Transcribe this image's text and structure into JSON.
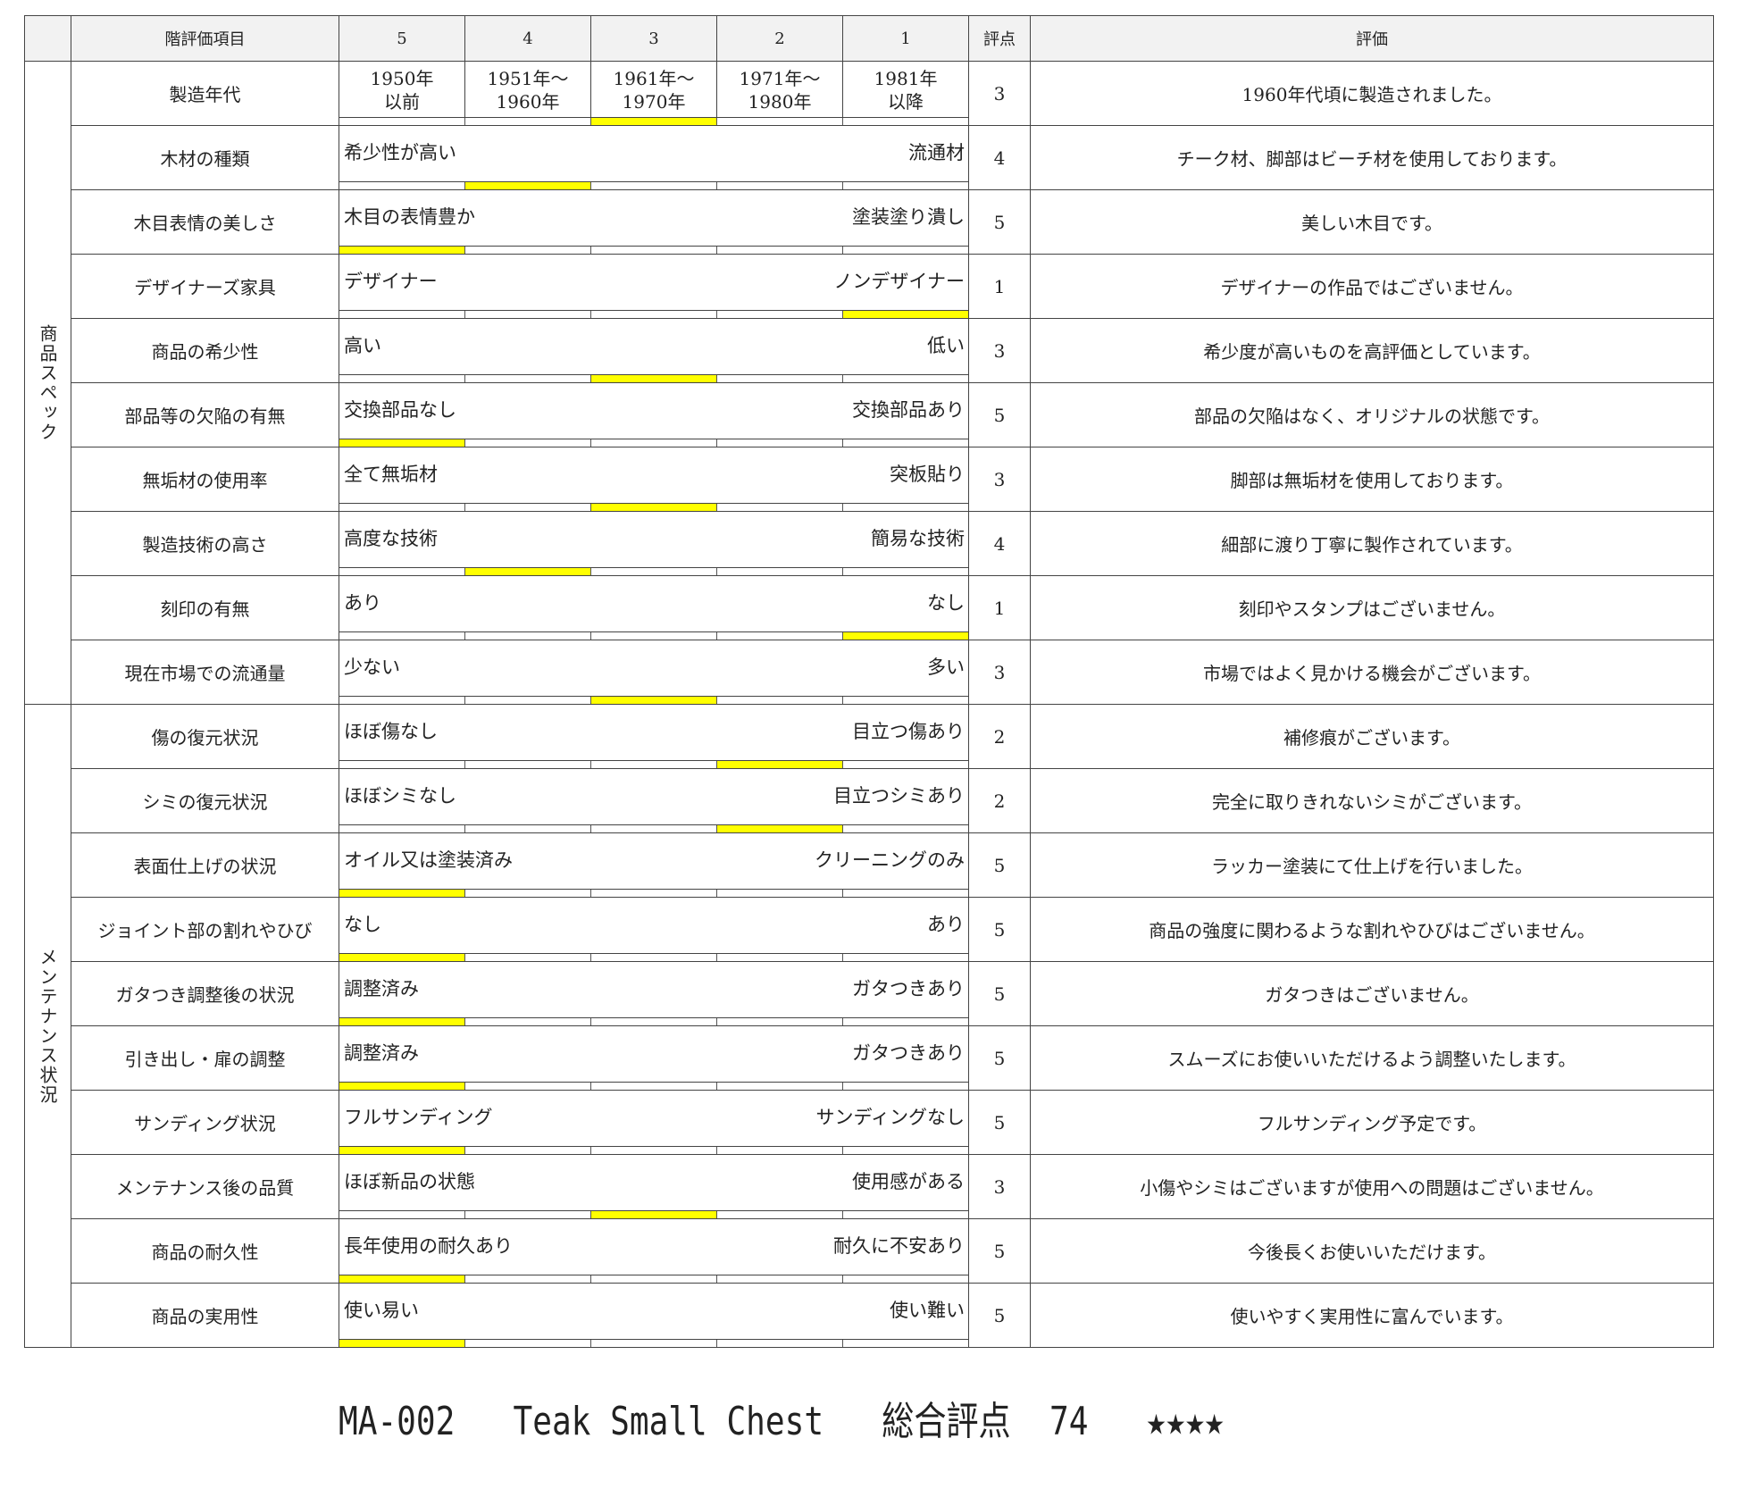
{
  "header": {
    "blank": "",
    "item": "階評価項目",
    "levels": [
      "5",
      "4",
      "3",
      "2",
      "1"
    ],
    "score": "評点",
    "evaluation": "評価"
  },
  "groups": [
    {
      "label": "商品スペック",
      "span": 10
    },
    {
      "label": "メンテナンス状況",
      "span": 10
    }
  ],
  "highlight_color": "#ffff00",
  "rows": [
    {
      "item": "製造年代",
      "years": [
        "1950年\n以前",
        "1951年～\n1960年",
        "1961年～\n1970年",
        "1971年～\n1980年",
        "1981年\n以降"
      ],
      "left": "",
      "right": "",
      "score": "3",
      "comment": "1960年代頃に製造されました。"
    },
    {
      "item": "木材の種類",
      "left": "希少性が高い",
      "right": "流通材",
      "score": "4",
      "comment": "チーク材、脚部はビーチ材を使用しております。"
    },
    {
      "item": "木目表情の美しさ",
      "left": "木目の表情豊か",
      "right": "塗装塗り潰し",
      "score": "5",
      "comment": "美しい木目です。"
    },
    {
      "item": "デザイナーズ家具",
      "left": "デザイナー",
      "right": "ノンデザイナー",
      "score": "1",
      "comment": "デザイナーの作品ではございません。"
    },
    {
      "item": "商品の希少性",
      "left": "高い",
      "right": "低い",
      "score": "3",
      "comment": "希少度が高いものを高評価としています。"
    },
    {
      "item": "部品等の欠陥の有無",
      "left": "交換部品なし",
      "right": "交換部品あり",
      "score": "5",
      "comment": "部品の欠陥はなく、オリジナルの状態です。"
    },
    {
      "item": "無垢材の使用率",
      "left": "全て無垢材",
      "right": "突板貼り",
      "score": "3",
      "comment": "脚部は無垢材を使用しております。"
    },
    {
      "item": "製造技術の高さ",
      "left": "高度な技術",
      "right": "簡易な技術",
      "score": "4",
      "comment": "細部に渡り丁寧に製作されています。"
    },
    {
      "item": "刻印の有無",
      "left": "あり",
      "right": "なし",
      "score": "1",
      "comment": "刻印やスタンプはございません。"
    },
    {
      "item": "現在市場での流通量",
      "left": "少ない",
      "right": "多い",
      "score": "3",
      "comment": "市場ではよく見かける機会がございます。"
    },
    {
      "item": "傷の復元状況",
      "left": "ほぼ傷なし",
      "right": "目立つ傷あり",
      "score": "2",
      "comment": "補修痕がございます。"
    },
    {
      "item": "シミの復元状況",
      "left": "ほぼシミなし",
      "right": "目立つシミあり",
      "score": "2",
      "comment": "完全に取りきれないシミがございます。"
    },
    {
      "item": "表面仕上げの状況",
      "left": "オイル又は塗装済み",
      "right": "クリーニングのみ",
      "score": "5",
      "comment": "ラッカー塗装にて仕上げを行いました。"
    },
    {
      "item": "ジョイント部の割れやひび",
      "left": "なし",
      "right": "あり",
      "score": "5",
      "comment": "商品の強度に関わるような割れやひびはございません。"
    },
    {
      "item": "ガタつき調整後の状況",
      "left": "調整済み",
      "right": "ガタつきあり",
      "score": "5",
      "comment": "ガタつきはございません。"
    },
    {
      "item": "引き出し・扉の調整",
      "left": "調整済み",
      "right": "ガタつきあり",
      "score": "5",
      "comment": "スムーズにお使いいただけるよう調整いたします。"
    },
    {
      "item": "サンディング状況",
      "left": "フルサンディング",
      "right": "サンディングなし",
      "score": "5",
      "comment": "フルサンディング予定です。"
    },
    {
      "item": "メンテナンス後の品質",
      "left": "ほぼ新品の状態",
      "right": "使用感がある",
      "score": "3",
      "comment": "小傷やシミはございますが使用への問題はございません。"
    },
    {
      "item": "商品の耐久性",
      "left": "長年使用の耐久あり",
      "right": "耐久に不安あり",
      "score": "5",
      "comment": "今後長くお使いいただけます。"
    },
    {
      "item": "商品の実用性",
      "left": "使い易い",
      "right": "使い難い",
      "score": "5",
      "comment": "使いやすく実用性に富んでいます。"
    }
  ],
  "footer": {
    "code": "MA-002",
    "name": "Teak Small Chest",
    "total_label": "総合評点",
    "total": "74",
    "stars": "★★★★"
  }
}
